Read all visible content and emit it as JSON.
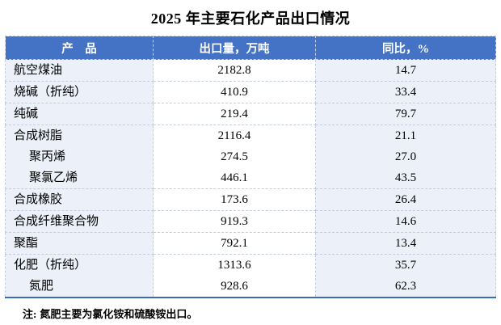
{
  "title": "2025 年主要石化产品出口情况",
  "table": {
    "headers": [
      "产　品",
      "出口量，万吨",
      "同比，%"
    ],
    "rows": [
      {
        "lines": [
          {
            "product": "航空煤油",
            "indent": false,
            "export": "2182.8",
            "yoy": "14.7"
          }
        ]
      },
      {
        "lines": [
          {
            "product": "烧碱（折纯）",
            "indent": false,
            "export": "410.9",
            "yoy": "33.4"
          }
        ]
      },
      {
        "lines": [
          {
            "product": "纯碱",
            "indent": false,
            "export": "219.4",
            "yoy": "79.7"
          }
        ]
      },
      {
        "lines": [
          {
            "product": "合成树脂",
            "indent": false,
            "export": "2116.4",
            "yoy": "21.1"
          },
          {
            "product": "聚丙烯",
            "indent": true,
            "export": "274.5",
            "yoy": "27.0"
          },
          {
            "product": "聚氯乙烯",
            "indent": true,
            "export": "446.1",
            "yoy": "43.5"
          }
        ]
      },
      {
        "lines": [
          {
            "product": "合成橡胶",
            "indent": false,
            "export": "173.6",
            "yoy": "26.4"
          }
        ]
      },
      {
        "lines": [
          {
            "product": "合成纤维聚合物",
            "indent": false,
            "export": "919.3",
            "yoy": "14.6"
          }
        ]
      },
      {
        "lines": [
          {
            "product": "聚酯",
            "indent": false,
            "export": "792.1",
            "yoy": "13.4"
          }
        ]
      },
      {
        "lines": [
          {
            "product": "化肥（折纯）",
            "indent": false,
            "export": "1313.6",
            "yoy": "35.7"
          },
          {
            "product": "氮肥",
            "indent": true,
            "export": "928.6",
            "yoy": "62.3"
          }
        ]
      }
    ]
  },
  "note": {
    "label": "注:",
    "text": "氮肥主要为氯化铵和硫酸铵出口。"
  },
  "colors": {
    "header_bg": "#4472C4",
    "header_text": "#FFFFFF",
    "band_bg": "#ECF0F8",
    "dashed_border": "#C3CDDF",
    "bottom_border": "#3A6CB5"
  },
  "chart_data": {
    "type": "table",
    "title": "2025 年主要石化产品出口情况",
    "columns": [
      "产　品",
      "出口量，万吨",
      "同比，%"
    ],
    "rows": [
      [
        "航空煤油",
        2182.8,
        14.7
      ],
      [
        "烧碱（折纯）",
        410.9,
        33.4
      ],
      [
        "纯碱",
        219.4,
        79.7
      ],
      [
        "合成树脂",
        2116.4,
        21.1
      ],
      [
        "　聚丙烯",
        274.5,
        27.0
      ],
      [
        "　聚氯乙烯",
        446.1,
        43.5
      ],
      [
        "合成橡胶",
        173.6,
        26.4
      ],
      [
        "合成纤维聚合物",
        919.3,
        14.6
      ],
      [
        "聚酯",
        792.1,
        13.4
      ],
      [
        "化肥（折纯）",
        1313.6,
        35.7
      ],
      [
        "　氮肥",
        928.6,
        62.3
      ]
    ],
    "note": "注: 氮肥主要为氯化铵和硫酸铵出口。",
    "layout_hints": {
      "banded_columns": true,
      "header_style": "blue-filled-white-bold-text",
      "grouped_rows": [
        "合成树脂 contains 聚丙烯, 聚氯乙烯",
        "化肥（折纯） contains 氮肥"
      ]
    }
  }
}
